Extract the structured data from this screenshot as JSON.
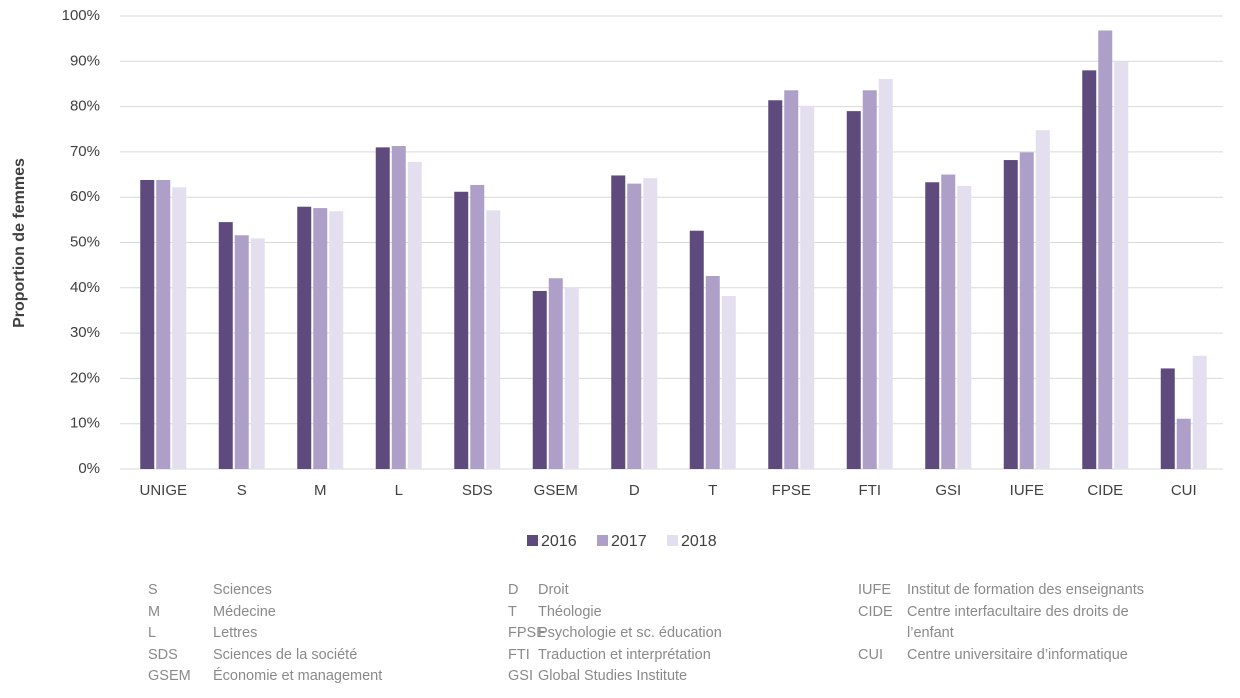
{
  "chart_data": {
    "type": "bar",
    "y_label": "Proportion de femmes",
    "categories": [
      "UNIGE",
      "S",
      "M",
      "L",
      "SDS",
      "GSEM",
      "D",
      "T",
      "FPSE",
      "FTI",
      "GSI",
      "IUFE",
      "CIDE",
      "CUI"
    ],
    "series": [
      {
        "name": "2016",
        "color": "#5e4a7d",
        "values": [
          63.8,
          54.5,
          57.9,
          71.0,
          61.2,
          39.3,
          64.8,
          52.6,
          81.4,
          79.0,
          63.3,
          68.2,
          88.0,
          22.2
        ]
      },
      {
        "name": "2017",
        "color": "#ad9fc8",
        "values": [
          63.8,
          51.6,
          57.6,
          71.3,
          62.7,
          42.1,
          63.0,
          42.6,
          83.6,
          83.6,
          65.0,
          69.9,
          96.8,
          11.1
        ]
      },
      {
        "name": "2018",
        "color": "#e4dfee",
        "values": [
          62.2,
          50.9,
          56.9,
          67.8,
          57.1,
          40.0,
          64.2,
          38.2,
          80.2,
          86.1,
          62.5,
          74.8,
          90.0,
          25.0
        ]
      }
    ],
    "ylim": [
      0,
      100
    ],
    "yticks": [
      {
        "value": 0,
        "label": "0%"
      },
      {
        "value": 10,
        "label": "10%"
      },
      {
        "value": 20,
        "label": "20%"
      },
      {
        "value": 30,
        "label": "30%"
      },
      {
        "value": 40,
        "label": "40%"
      },
      {
        "value": 50,
        "label": "50%"
      },
      {
        "value": 60,
        "label": "60%"
      },
      {
        "value": 70,
        "label": "70%"
      },
      {
        "value": 80,
        "label": "80%"
      },
      {
        "value": 90,
        "label": "90%"
      },
      {
        "value": 100,
        "label": "100%"
      }
    ],
    "grid": true,
    "legend": "bottom"
  },
  "glossary": [
    [
      {
        "abbr": "S",
        "name": "Sciences"
      },
      {
        "abbr": "M",
        "name": "Médecine"
      },
      {
        "abbr": "L",
        "name": "Lettres"
      },
      {
        "abbr": "SDS",
        "name": "Sciences de la société"
      },
      {
        "abbr": "GSEM",
        "name": "Économie et management"
      }
    ],
    [
      {
        "abbr": "D",
        "name": "Droit"
      },
      {
        "abbr": "T",
        "name": "Théologie"
      },
      {
        "abbr": "FPSE",
        "name": "Psychologie et sc. éducation"
      },
      {
        "abbr": "FTI",
        "name": "Traduction et interprétation"
      },
      {
        "abbr": "GSI",
        "name": "Global Studies Institute"
      }
    ],
    [
      {
        "abbr": "IUFE",
        "name": "Institut de formation des enseignants"
      },
      {
        "abbr": "CIDE",
        "name": "Centre interfacultaire des droits de l’enfant"
      },
      {
        "abbr": "CUI",
        "name": "Centre universitaire d’informatique"
      }
    ]
  ]
}
